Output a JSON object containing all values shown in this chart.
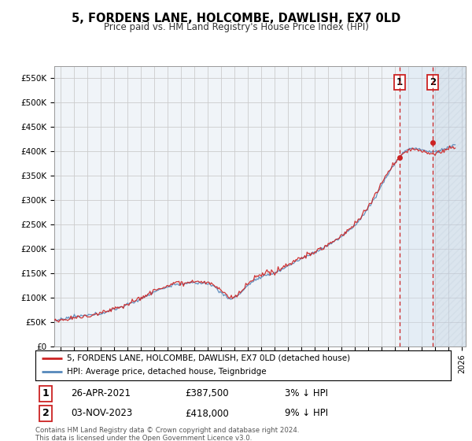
{
  "title": "5, FORDENS LANE, HOLCOMBE, DAWLISH, EX7 0LD",
  "subtitle": "Price paid vs. HM Land Registry's House Price Index (HPI)",
  "ylabel_ticks": [
    "£0",
    "£50K",
    "£100K",
    "£150K",
    "£200K",
    "£250K",
    "£300K",
    "£350K",
    "£400K",
    "£450K",
    "£500K",
    "£550K"
  ],
  "ylim": [
    0,
    575000
  ],
  "xlim_start": 1995.5,
  "xlim_end": 2026.3,
  "hpi_color": "#5588bb",
  "price_color": "#cc2222",
  "grid_color": "#cccccc",
  "background_color": "#ffffff",
  "plot_bg_color": "#f0f4f8",
  "shade_color": "#d0e0f0",
  "transaction1": {
    "label": "1",
    "date": "26-APR-2021",
    "price": 387500,
    "hpi_diff": "3% ↓ HPI"
  },
  "transaction2": {
    "label": "2",
    "date": "03-NOV-2023",
    "price": 418000,
    "hpi_diff": "9% ↓ HPI"
  },
  "legend_line1": "5, FORDENS LANE, HOLCOMBE, DAWLISH, EX7 0LD (detached house)",
  "legend_line2": "HPI: Average price, detached house, Teignbridge",
  "footer": "Contains HM Land Registry data © Crown copyright and database right 2024.\nThis data is licensed under the Open Government Licence v3.0.",
  "transaction1_x": 2021.32,
  "transaction1_y": 387500,
  "transaction2_x": 2023.84,
  "transaction2_y": 418000,
  "seed": 12345
}
